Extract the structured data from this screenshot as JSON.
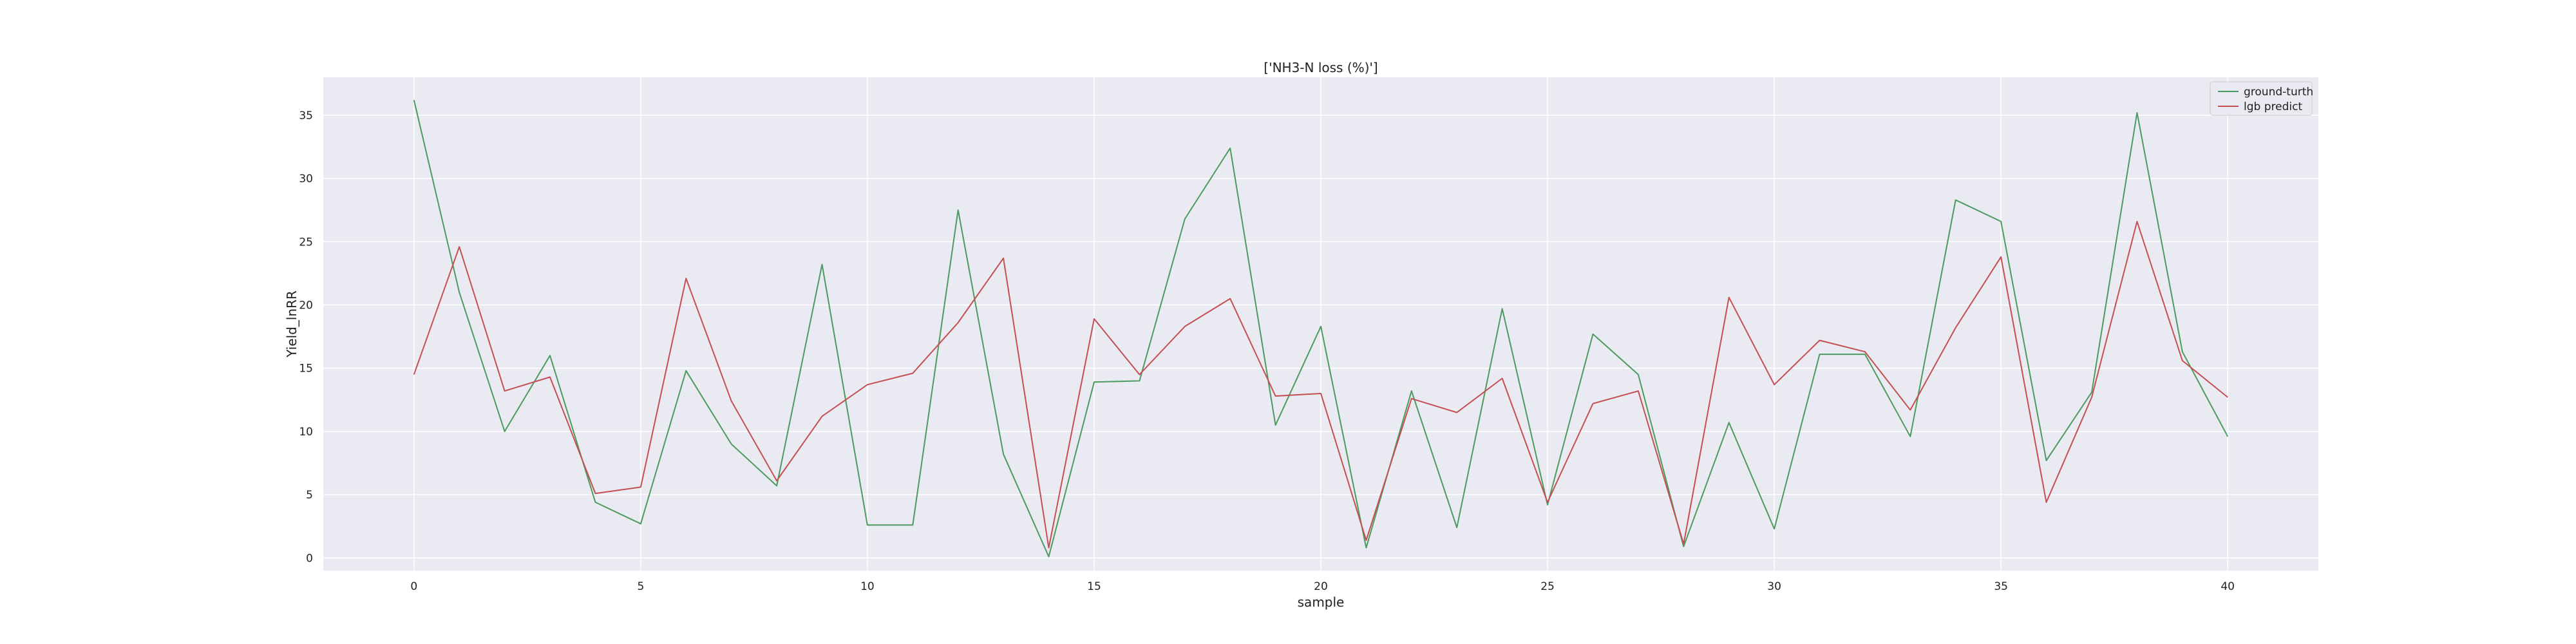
{
  "chart_data": {
    "type": "line",
    "title": "['NH3-N loss (%)']",
    "xlabel": "sample",
    "ylabel": "Yield_lnRR",
    "xlim": [
      -2,
      42
    ],
    "ylim": [
      -1,
      38
    ],
    "xticks": [
      0,
      5,
      10,
      15,
      20,
      25,
      30,
      35,
      40
    ],
    "yticks": [
      0,
      5,
      10,
      15,
      20,
      25,
      30,
      35
    ],
    "grid": true,
    "legend_position": "top-right",
    "x": [
      0,
      1,
      2,
      3,
      4,
      5,
      6,
      7,
      8,
      9,
      10,
      11,
      12,
      13,
      14,
      15,
      16,
      17,
      18,
      19,
      20,
      21,
      22,
      23,
      24,
      25,
      26,
      27,
      28,
      29,
      30,
      31,
      32,
      33,
      34,
      35,
      36,
      37,
      38,
      39,
      40
    ],
    "series": [
      {
        "name": "ground-turth",
        "color": "#4c9a5f",
        "values": [
          36.2,
          21.0,
          10.0,
          16.0,
          4.4,
          2.7,
          14.8,
          9.0,
          5.7,
          23.2,
          2.6,
          2.6,
          27.5,
          8.2,
          0.1,
          13.9,
          14.0,
          26.8,
          32.4,
          10.5,
          18.3,
          0.8,
          13.2,
          2.4,
          19.7,
          4.2,
          17.7,
          14.5,
          0.9,
          10.7,
          2.3,
          16.1,
          16.1,
          9.6,
          28.3,
          26.6,
          7.7,
          13.1,
          35.2,
          16.3,
          9.6
        ]
      },
      {
        "name": "lgb predict",
        "color": "#c44e52",
        "values": [
          14.5,
          24.6,
          13.2,
          14.3,
          5.1,
          5.6,
          22.1,
          12.4,
          6.1,
          11.2,
          13.7,
          14.6,
          18.6,
          23.7,
          0.8,
          18.9,
          14.5,
          18.3,
          20.5,
          12.8,
          13.0,
          1.4,
          12.6,
          11.5,
          14.2,
          4.4,
          12.2,
          13.2,
          1.1,
          20.6,
          13.7,
          17.2,
          16.3,
          11.7,
          18.2,
          23.8,
          4.4,
          12.7,
          26.6,
          15.6,
          12.7
        ]
      }
    ]
  }
}
